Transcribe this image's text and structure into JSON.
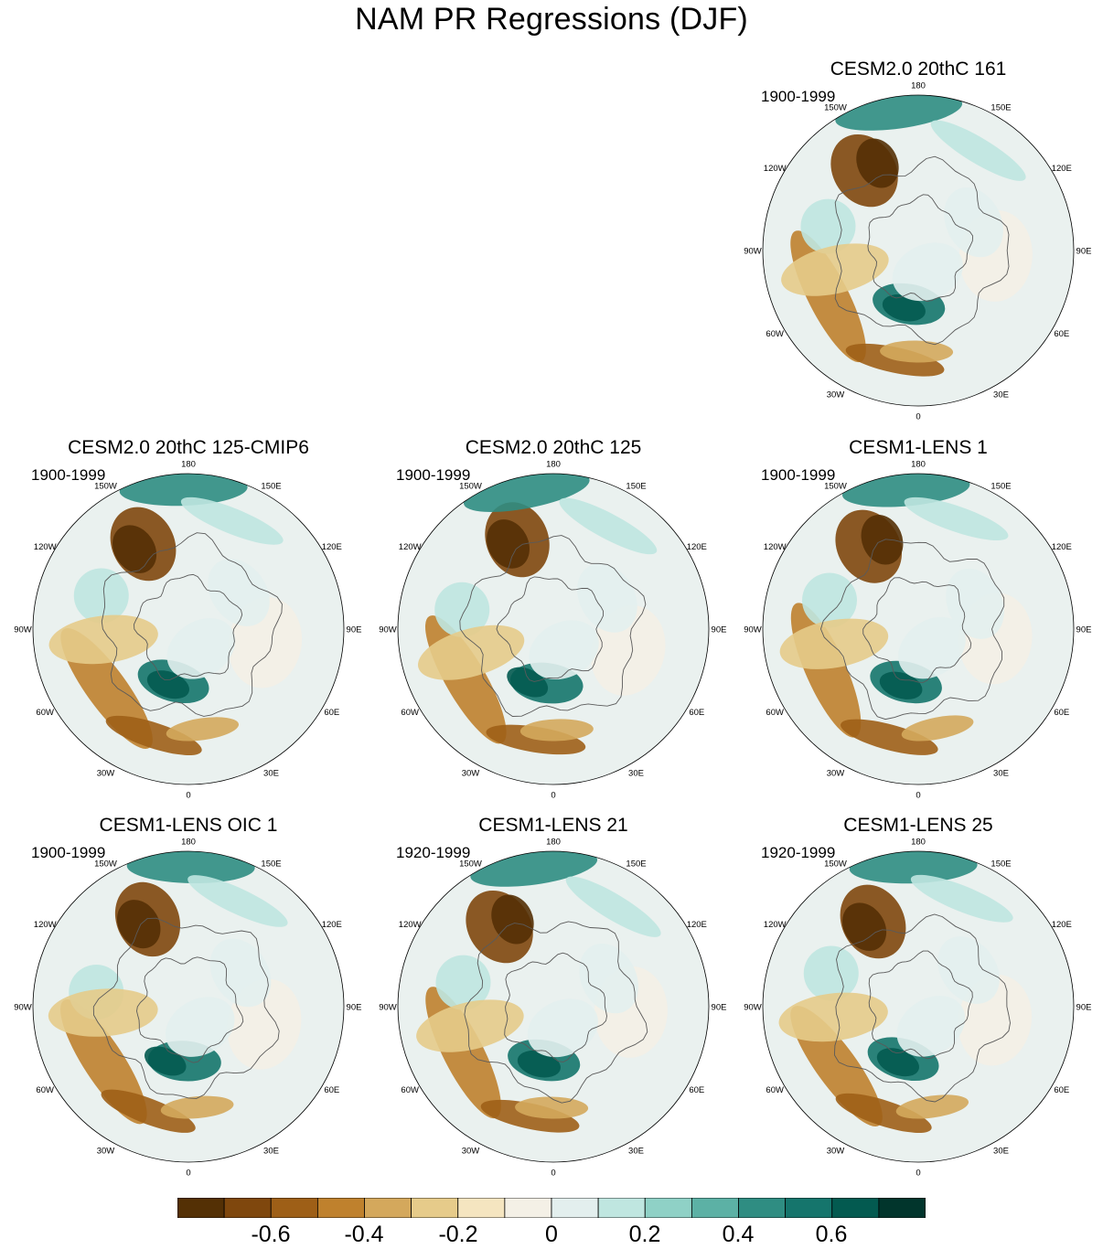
{
  "title": "NAM PR Regressions (DJF)",
  "longitude_labels": [
    "180",
    "150E",
    "120E",
    "90E",
    "60E",
    "30E",
    "0",
    "30W",
    "60W",
    "90W",
    "120W",
    "150W"
  ],
  "panels": [
    {
      "title": "CESM2.0 20thC 161",
      "period": "1900-1999"
    },
    {
      "title": "CESM2.0 20thC 125-CMIP6",
      "period": "1900-1999"
    },
    {
      "title": "CESM2.0 20thC 125",
      "period": "1900-1999"
    },
    {
      "title": "CESM1-LENS 1",
      "period": "1900-1999"
    },
    {
      "title": "CESM1-LENS OIC 1",
      "period": "1900-1999"
    },
    {
      "title": "CESM1-LENS 21",
      "period": "1920-1999"
    },
    {
      "title": "CESM1-LENS 25",
      "period": "1920-1999"
    }
  ],
  "colorbar": {
    "colors": [
      "#543005",
      "#7f470d",
      "#9e5f17",
      "#bf812d",
      "#d4a85c",
      "#e6cb8a",
      "#f5e5c0",
      "#f4f0e6",
      "#e3efee",
      "#bfe6e0",
      "#8fd1c6",
      "#5cb1a5",
      "#2f8d82",
      "#15756c",
      "#035a50",
      "#01352c"
    ],
    "tick_labels": [
      "-0.6",
      "-0.4",
      "-0.2",
      "0",
      "0.2",
      "0.4",
      "0.6"
    ]
  },
  "colors": {
    "coastline": "#5a5a5a",
    "map_border": "#000000"
  }
}
